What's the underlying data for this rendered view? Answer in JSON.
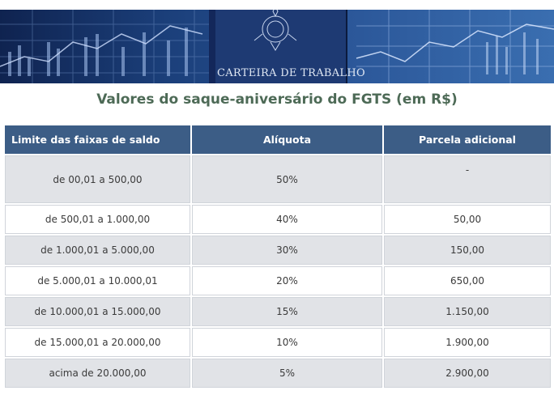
{
  "banner": {
    "card_label": "CARTEIRA DE TRABALHO"
  },
  "title": "Valores do saque-aniversário do FGTS (em R$)",
  "table": {
    "headers": [
      "Limite das faixas de saldo",
      "Alíquota",
      "Parcela adicional"
    ],
    "rows": [
      [
        "de 00,01 a 500,00",
        "50%",
        "-"
      ],
      [
        "de 500,01 a 1.000,00",
        "40%",
        "50,00"
      ],
      [
        "de 1.000,01 a 5.000,00",
        "30%",
        "150,00"
      ],
      [
        "de 5.000,01 a 10.000,01",
        "20%",
        "650,00"
      ],
      [
        "de 10.000,01 a 15.000,00",
        "15%",
        "1.150,00"
      ],
      [
        "de 15.000,01 a 20.000,00",
        "10%",
        "1.900,00"
      ],
      [
        "acima de 20.000,00",
        "5%",
        "2.900,00"
      ]
    ]
  },
  "colors": {
    "header_bg": "#3c5d86",
    "row_alt_bg": "#e1e3e7",
    "title_color": "#4d6a56"
  }
}
